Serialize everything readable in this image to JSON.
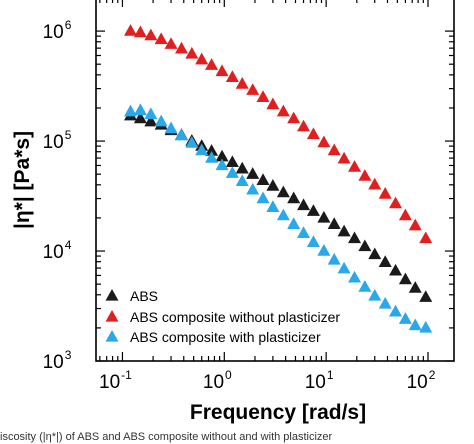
{
  "chart_data": {
    "type": "scatter",
    "xlabel": "Frequency [rad/s]",
    "ylabel": "|η*| [Pa*s]",
    "xscale": "log",
    "yscale": "log",
    "xlim": [
      0.055,
      180
    ],
    "ylim": [
      1000,
      2000000
    ],
    "x_ticks": [
      {
        "value": 0.1,
        "base": "10",
        "exp": "-1"
      },
      {
        "value": 1,
        "base": "10",
        "exp": "0"
      },
      {
        "value": 10,
        "base": "10",
        "exp": "1"
      },
      {
        "value": 100,
        "base": "10",
        "exp": "2"
      }
    ],
    "y_ticks": [
      {
        "value": 1000,
        "base": "10",
        "exp": "3"
      },
      {
        "value": 10000,
        "base": "10",
        "exp": "4"
      },
      {
        "value": 100000,
        "base": "10",
        "exp": "5"
      },
      {
        "value": 1000000,
        "base": "10",
        "exp": "6"
      }
    ],
    "legend_position": "bottom-left",
    "grid": false,
    "marker": "triangle",
    "series": [
      {
        "name": "ABS",
        "color": "#1a1a1a",
        "x": [
          0.12,
          0.15,
          0.19,
          0.24,
          0.3,
          0.38,
          0.48,
          0.6,
          0.75,
          0.95,
          1.2,
          1.5,
          1.9,
          2.4,
          3.0,
          3.8,
          4.8,
          6.0,
          7.5,
          9.5,
          12,
          15,
          19,
          24,
          30,
          38,
          48,
          60,
          75,
          95
        ],
        "y": [
          170000,
          160000,
          150000,
          140000,
          125000,
          113000,
          100000,
          90000,
          81000,
          72000,
          64000,
          56000,
          50000,
          44000,
          39000,
          34000,
          30000,
          26000,
          23000,
          20000,
          17500,
          15000,
          13000,
          11000,
          9300,
          7900,
          6600,
          5500,
          4600,
          3800
        ]
      },
      {
        "name": "ABS composite without plasticizer",
        "color": "#e02020",
        "x": [
          0.12,
          0.15,
          0.19,
          0.24,
          0.3,
          0.38,
          0.48,
          0.6,
          0.75,
          0.95,
          1.2,
          1.5,
          1.9,
          2.4,
          3.0,
          3.8,
          4.8,
          6.0,
          7.5,
          9.5,
          12,
          15,
          19,
          24,
          30,
          38,
          48,
          60,
          75,
          95
        ],
        "y": [
          1000000,
          970000,
          910000,
          840000,
          760000,
          690000,
          620000,
          550000,
          490000,
          430000,
          380000,
          330000,
          290000,
          250000,
          215000,
          185000,
          160000,
          135000,
          115000,
          97000,
          82000,
          69000,
          58000,
          48000,
          40000,
          33000,
          27000,
          21000,
          17000,
          13000
        ]
      },
      {
        "name": "ABS composite with plasticizer",
        "color": "#2aa8e8",
        "x": [
          0.12,
          0.15,
          0.19,
          0.24,
          0.3,
          0.38,
          0.48,
          0.6,
          0.75,
          0.95,
          1.2,
          1.5,
          1.9,
          2.4,
          3.0,
          3.8,
          4.8,
          6.0,
          7.5,
          9.5,
          12,
          15,
          19,
          24,
          30,
          38,
          48,
          60,
          75,
          95
        ],
        "y": [
          185000,
          190000,
          175000,
          150000,
          130000,
          112000,
          96000,
          82000,
          70000,
          60000,
          51000,
          43000,
          36000,
          30000,
          25000,
          21000,
          17500,
          14500,
          12000,
          10000,
          8300,
          6900,
          5700,
          4700,
          3900,
          3300,
          2800,
          2400,
          2100,
          2000
        ]
      }
    ]
  },
  "caption": "iscosity (|η*|) of ABS and ABS composite without and with plasticizer"
}
